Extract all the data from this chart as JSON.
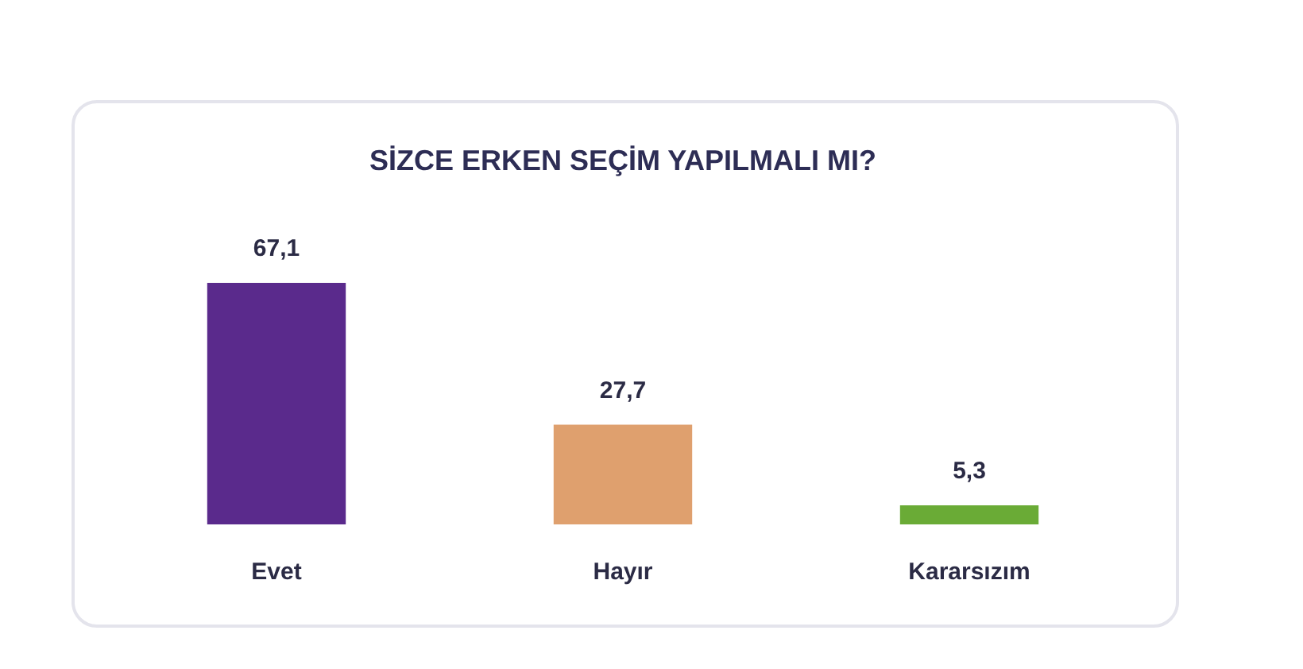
{
  "chart_data": {
    "type": "bar",
    "title": "SİZCE ERKEN SEÇİM YAPILMALI MI?",
    "categories": [
      "Evet",
      "Hayır",
      "Kararsızım"
    ],
    "values": [
      67.1,
      27.7,
      5.3
    ],
    "value_labels": [
      "67,1",
      "27,7",
      "5,3"
    ],
    "colors": [
      "#5a2a8c",
      "#dfa06e",
      "#6aab36"
    ]
  }
}
